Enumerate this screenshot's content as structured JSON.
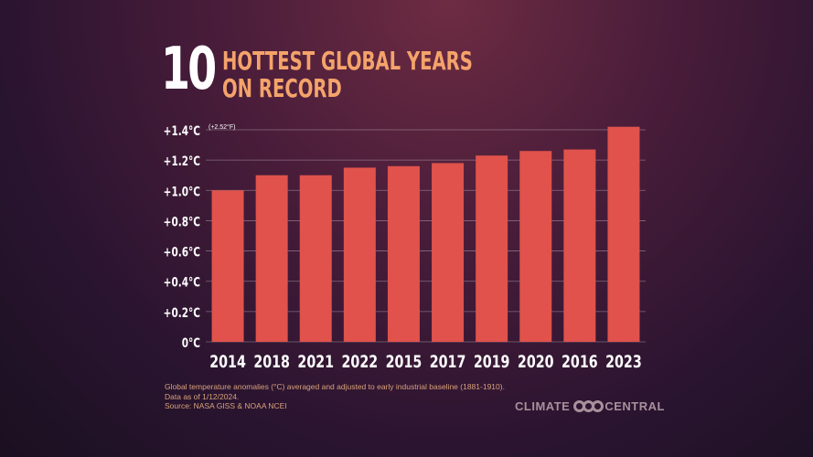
{
  "title": {
    "number": "10",
    "line1": "HOTTEST GLOBAL YEARS",
    "line2": "ON RECORD"
  },
  "chart_data": {
    "type": "bar",
    "categories": [
      "2014",
      "2018",
      "2021",
      "2022",
      "2015",
      "2017",
      "2019",
      "2020",
      "2016",
      "2023"
    ],
    "values": [
      1.0,
      1.1,
      1.1,
      1.15,
      1.16,
      1.18,
      1.23,
      1.26,
      1.27,
      1.42
    ],
    "ylim": [
      0,
      1.4
    ],
    "yticks": [
      0,
      0.2,
      0.4,
      0.6,
      0.8,
      1.0,
      1.2,
      1.4
    ],
    "ytick_labels": [
      "0°C",
      "+0.2°C",
      "+0.4°C",
      "+0.6°C",
      "+0.8°C",
      "+1.0°C",
      "+1.2°C",
      "+1.4°C"
    ],
    "annotation": "(+2.52°F)",
    "grid": true,
    "bar_color": "#e0524b"
  },
  "footer": {
    "note": "Global temperature anomalies (°C) averaged and adjusted to early industrial baseline (1881-1910).",
    "date": "Data as of 1/12/2024.",
    "source": "Source: NASA GISS & NOAA NCEI"
  },
  "logo": {
    "left": "CLIMATE",
    "right": "CENTRAL"
  }
}
